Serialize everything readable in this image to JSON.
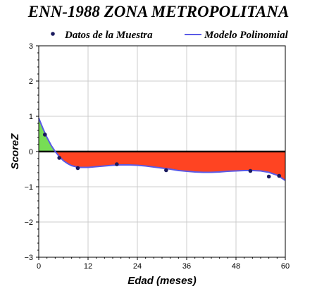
{
  "chart_data": {
    "type": "scatter",
    "title": "ENN-1988 ZONA METROPOLITANA",
    "xlabel": "Edad (meses)",
    "ylabel": "ScoreZ",
    "xlim": [
      0,
      60
    ],
    "ylim": [
      -3,
      3
    ],
    "x_ticks": [
      0,
      12,
      24,
      36,
      48,
      60
    ],
    "y_ticks": [
      -3,
      -2,
      -1,
      0,
      1,
      2,
      3
    ],
    "grid": true,
    "legend": {
      "placement": "top",
      "points_label": "Datos de la Muestra",
      "model_label": "Modelo Polinomial"
    },
    "series": [
      {
        "name": "Datos de la Muestra",
        "kind": "points",
        "x": [
          1.5,
          5,
          9.5,
          19,
          31,
          51.5,
          56,
          58.5
        ],
        "y": [
          0.48,
          -0.18,
          -0.47,
          -0.36,
          -0.53,
          -0.55,
          -0.71,
          -0.69
        ]
      },
      {
        "name": "Modelo Polinomial",
        "kind": "curve",
        "x": [
          0,
          1,
          2,
          3,
          4,
          5,
          6,
          7,
          8,
          9,
          10,
          12,
          14,
          16,
          18,
          20,
          22,
          24,
          26,
          28,
          30,
          32,
          34,
          36,
          38,
          40,
          42,
          44,
          46,
          48,
          50,
          52,
          54,
          56,
          58,
          60
        ],
        "y": [
          0.95,
          0.66,
          0.4,
          0.18,
          0.0,
          -0.14,
          -0.26,
          -0.34,
          -0.4,
          -0.43,
          -0.45,
          -0.45,
          -0.43,
          -0.41,
          -0.39,
          -0.38,
          -0.38,
          -0.39,
          -0.41,
          -0.44,
          -0.47,
          -0.5,
          -0.54,
          -0.56,
          -0.58,
          -0.59,
          -0.59,
          -0.58,
          -0.56,
          -0.55,
          -0.54,
          -0.54,
          -0.55,
          -0.59,
          -0.67,
          -0.82
        ]
      }
    ],
    "colors": {
      "model_line": "#5a5ae6",
      "points": "#1a1a5e",
      "area_above": "#77dd55",
      "area_below": "#ff4422",
      "grid": "#cccccc",
      "zero_line": "#000000"
    }
  }
}
